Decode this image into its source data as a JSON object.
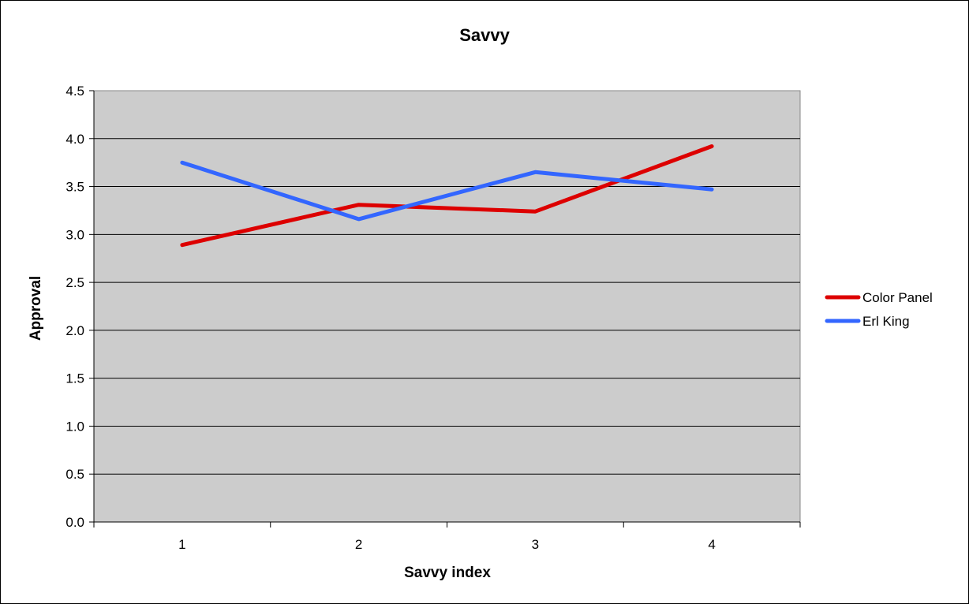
{
  "chart_data": {
    "type": "line",
    "title": "Savvy",
    "xlabel": "Savvy index",
    "ylabel": "Approval",
    "categories": [
      "1",
      "2",
      "3",
      "4"
    ],
    "ylim": [
      0,
      4.5
    ],
    "ytick_labels": [
      "0.0",
      "0.5",
      "1.0",
      "1.5",
      "2.0",
      "2.5",
      "3.0",
      "3.5",
      "4.0",
      "4.5"
    ],
    "grid": true,
    "plot_background": "#cccccc",
    "legend_position": "right",
    "series": [
      {
        "name": "Color Panel",
        "color": "#dd0000",
        "values": [
          2.89,
          3.31,
          3.24,
          3.92
        ]
      },
      {
        "name": "Erl King",
        "color": "#3366ff",
        "values": [
          3.75,
          3.16,
          3.65,
          3.47
        ]
      }
    ]
  }
}
